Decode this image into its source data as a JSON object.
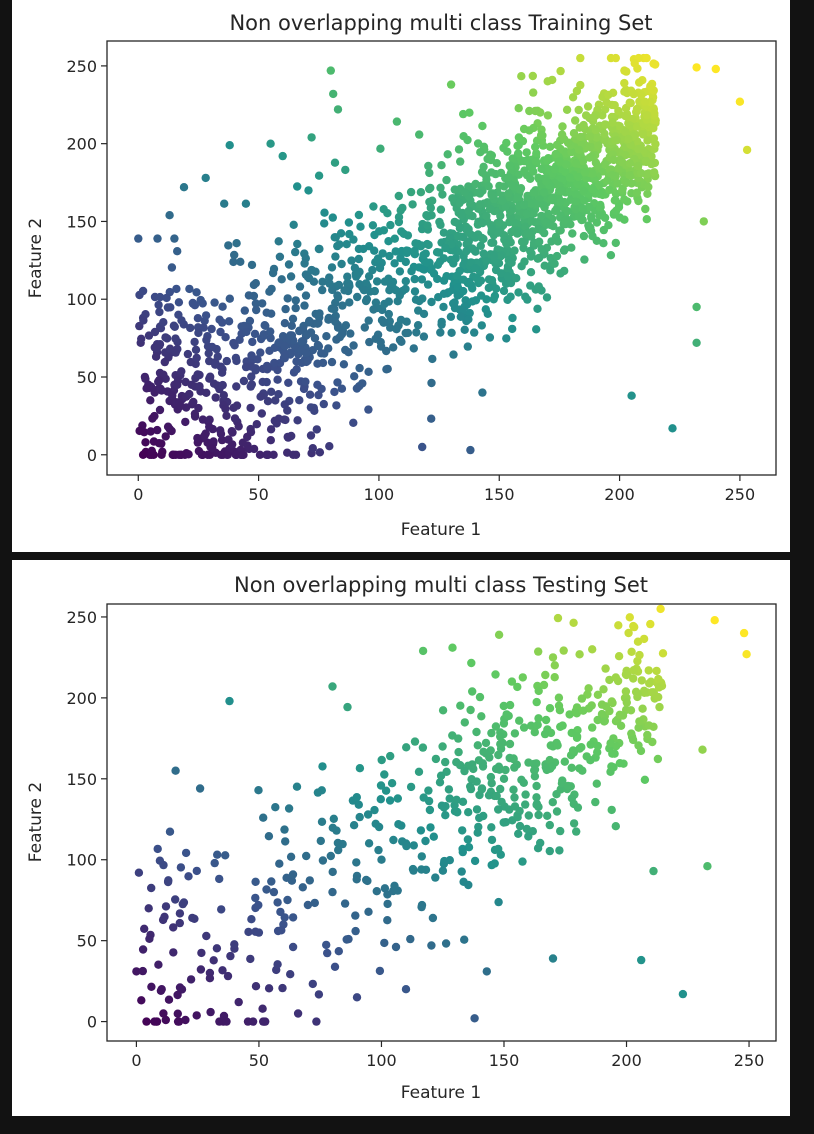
{
  "chart_data": [
    {
      "type": "scatter",
      "title": "Non overlapping multi class Training Set",
      "xlabel": "Feature 1",
      "ylabel": "Feature 2",
      "xlim": [
        -13,
        265
      ],
      "ylim": [
        -13,
        266
      ],
      "xticks": [
        0,
        50,
        100,
        150,
        200,
        250
      ],
      "yticks": [
        0,
        50,
        100,
        150,
        200,
        250
      ],
      "colormap": "viridis",
      "color_by": "class (increasing with Feature 1 + Feature 2)",
      "grid": false,
      "legend": "none",
      "approx_point_count": 1800,
      "marker_color_low": "#440154",
      "marker_color_high": "#fde725",
      "points": [
        [
          0,
          139
        ],
        [
          1,
          72
        ],
        [
          2,
          88
        ],
        [
          8,
          139
        ],
        [
          13,
          154
        ],
        [
          15,
          139
        ],
        [
          19,
          172
        ],
        [
          28,
          178
        ],
        [
          38,
          199
        ],
        [
          55,
          200
        ],
        [
          60,
          192
        ],
        [
          72,
          204
        ],
        [
          80,
          247
        ],
        [
          81,
          232
        ],
        [
          83,
          222
        ],
        [
          130,
          238
        ],
        [
          135,
          219
        ],
        [
          172,
          241
        ],
        [
          202,
          247
        ],
        [
          210,
          255
        ],
        [
          232,
          249
        ],
        [
          240,
          248
        ],
        [
          250,
          227
        ],
        [
          253,
          196
        ],
        [
          232,
          72
        ],
        [
          232,
          95
        ],
        [
          235,
          150
        ],
        [
          205,
          38
        ],
        [
          222,
          17
        ],
        [
          143,
          40
        ],
        [
          138,
          3
        ],
        [
          118,
          5
        ],
        [
          72,
          1
        ],
        [
          40,
          2
        ],
        [
          3,
          8
        ],
        [
          10,
          2
        ],
        [
          20,
          1
        ],
        [
          30,
          5
        ],
        [
          5,
          35
        ],
        [
          15,
          45
        ],
        [
          25,
          30
        ],
        [
          35,
          55
        ],
        [
          45,
          60
        ],
        [
          55,
          75
        ],
        [
          65,
          70
        ],
        [
          75,
          90
        ],
        [
          85,
          80
        ],
        [
          95,
          100
        ],
        [
          105,
          110
        ],
        [
          115,
          105
        ],
        [
          125,
          130
        ],
        [
          135,
          140
        ],
        [
          145,
          150
        ],
        [
          155,
          160
        ],
        [
          165,
          170
        ],
        [
          175,
          180
        ],
        [
          185,
          190
        ],
        [
          195,
          200
        ],
        [
          205,
          210
        ],
        [
          215,
          215
        ]
      ]
    },
    {
      "type": "scatter",
      "title": "Non overlapping multi class Testing Set",
      "xlabel": "Feature 1",
      "ylabel": "Feature 2",
      "xlim": [
        -12,
        261
      ],
      "ylim": [
        -12,
        258
      ],
      "xticks": [
        0,
        50,
        100,
        150,
        200,
        250
      ],
      "yticks": [
        0,
        50,
        100,
        150,
        200,
        250
      ],
      "colormap": "viridis",
      "color_by": "class (increasing with Feature 1 + Feature 2)",
      "grid": false,
      "legend": "none",
      "approx_point_count": 600,
      "marker_color_low": "#440154",
      "marker_color_high": "#fde725",
      "points": [
        [
          0,
          31
        ],
        [
          1,
          92
        ],
        [
          5,
          70
        ],
        [
          10,
          19
        ],
        [
          11,
          5
        ],
        [
          12,
          1
        ],
        [
          16,
          155
        ],
        [
          17,
          0
        ],
        [
          20,
          1
        ],
        [
          26,
          144
        ],
        [
          38,
          198
        ],
        [
          80,
          207
        ],
        [
          117,
          229
        ],
        [
          129,
          231
        ],
        [
          148,
          239
        ],
        [
          170,
          225
        ],
        [
          186,
          230
        ],
        [
          236,
          248
        ],
        [
          248,
          240
        ],
        [
          249,
          227
        ],
        [
          231,
          168
        ],
        [
          233,
          96
        ],
        [
          211,
          93
        ],
        [
          206,
          38
        ],
        [
          223,
          17
        ],
        [
          170,
          39
        ],
        [
          143,
          31
        ],
        [
          138,
          2
        ],
        [
          66,
          5
        ],
        [
          90,
          15
        ],
        [
          110,
          20
        ],
        [
          30,
          30
        ],
        [
          40,
          45
        ],
        [
          50,
          55
        ],
        [
          60,
          60
        ],
        [
          70,
          72
        ],
        [
          80,
          80
        ],
        [
          90,
          90
        ],
        [
          100,
          100
        ],
        [
          110,
          110
        ],
        [
          120,
          120
        ],
        [
          130,
          130
        ],
        [
          140,
          140
        ],
        [
          150,
          150
        ],
        [
          160,
          160
        ],
        [
          170,
          170
        ],
        [
          180,
          180
        ],
        [
          190,
          190
        ],
        [
          200,
          200
        ],
        [
          210,
          210
        ]
      ]
    }
  ]
}
